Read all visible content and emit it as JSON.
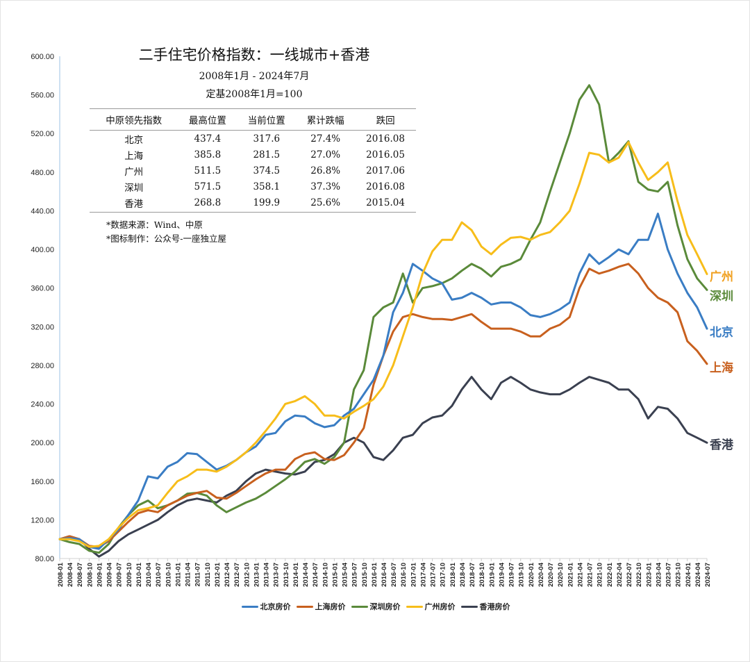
{
  "chart_data": {
    "type": "line",
    "title": "二手住宅价格指数：一线城市+香港",
    "subtitle_lines": [
      "2008年1月 - 2024年7月",
      "定基2008年1月=100"
    ],
    "xlabel": "",
    "ylabel": "",
    "ylim": [
      80,
      600
    ],
    "yticks": [
      "80.00",
      "120.00",
      "160.00",
      "200.00",
      "240.00",
      "280.00",
      "320.00",
      "360.00",
      "400.00",
      "440.00",
      "480.00",
      "520.00",
      "560.00",
      "600.00"
    ],
    "x": [
      "2008-01",
      "2008-04",
      "2008-07",
      "2008-10",
      "2009-01",
      "2009-04",
      "2009-07",
      "2009-10",
      "2010-01",
      "2010-04",
      "2010-07",
      "2010-10",
      "2011-01",
      "2011-04",
      "2011-07",
      "2011-10",
      "2012-01",
      "2012-04",
      "2012-07",
      "2012-10",
      "2013-01",
      "2013-04",
      "2013-07",
      "2013-10",
      "2014-01",
      "2014-04",
      "2014-07",
      "2014-10",
      "2015-01",
      "2015-04",
      "2015-07",
      "2015-10",
      "2016-01",
      "2016-04",
      "2016-07",
      "2016-10",
      "2017-01",
      "2017-04",
      "2017-07",
      "2017-10",
      "2018-01",
      "2018-04",
      "2018-07",
      "2018-10",
      "2019-01",
      "2019-04",
      "2019-07",
      "2019-10",
      "2020-01",
      "2020-04",
      "2020-07",
      "2020-10",
      "2021-01",
      "2021-04",
      "2021-07",
      "2021-10",
      "2022-01",
      "2022-04",
      "2022-07",
      "2022-10",
      "2023-01",
      "2023-04",
      "2023-07",
      "2023-10",
      "2024-01",
      "2024-04",
      "2024-07"
    ],
    "grid": false,
    "legend": "bottom",
    "series": [
      {
        "name": "北京房价",
        "end_label": "北京",
        "color": "#3a7dc4",
        "values": [
          100,
          101,
          100,
          92,
          90,
          100,
          110,
          125,
          140,
          165,
          163,
          175,
          180,
          189,
          188,
          180,
          172,
          176,
          182,
          190,
          196,
          208,
          210,
          222,
          228,
          227,
          220,
          216,
          218,
          228,
          235,
          250,
          265,
          290,
          335,
          355,
          385,
          378,
          370,
          365,
          348,
          350,
          355,
          350,
          343,
          345,
          345,
          340,
          332,
          330,
          333,
          338,
          345,
          375,
          395,
          385,
          392,
          400,
          395,
          410,
          410,
          437,
          400,
          375,
          355,
          340,
          318
        ]
      },
      {
        "name": "上海房价",
        "end_label": "上海",
        "color": "#c8601e",
        "values": [
          100,
          103,
          100,
          93,
          92,
          98,
          108,
          118,
          127,
          130,
          128,
          135,
          140,
          145,
          148,
          150,
          143,
          142,
          148,
          155,
          162,
          168,
          172,
          172,
          183,
          188,
          190,
          183,
          182,
          187,
          200,
          215,
          260,
          290,
          315,
          330,
          333,
          330,
          328,
          328,
          327,
          330,
          333,
          325,
          318,
          318,
          318,
          315,
          310,
          310,
          318,
          322,
          330,
          360,
          380,
          375,
          378,
          382,
          385,
          375,
          360,
          350,
          345,
          335,
          305,
          295,
          281.5
        ]
      },
      {
        "name": "深圳房价",
        "end_label": "深圳",
        "color": "#5a8a3a",
        "values": [
          100,
          97,
          95,
          88,
          86,
          95,
          112,
          125,
          135,
          140,
          132,
          135,
          140,
          147,
          148,
          145,
          135,
          128,
          133,
          138,
          142,
          148,
          155,
          162,
          170,
          180,
          183,
          178,
          185,
          200,
          255,
          275,
          330,
          340,
          345,
          375,
          345,
          360,
          362,
          365,
          370,
          378,
          385,
          380,
          372,
          382,
          385,
          390,
          410,
          428,
          460,
          490,
          520,
          555,
          570,
          550,
          490,
          500,
          512,
          470,
          462,
          460,
          470,
          425,
          390,
          370,
          358.1
        ]
      },
      {
        "name": "广州房价",
        "end_label": "广州",
        "color": "#f7bd1a",
        "values": [
          100,
          100,
          98,
          92,
          93,
          100,
          112,
          122,
          130,
          132,
          135,
          148,
          160,
          165,
          172,
          172,
          170,
          175,
          182,
          190,
          200,
          212,
          225,
          240,
          243,
          248,
          240,
          228,
          228,
          225,
          232,
          238,
          245,
          258,
          280,
          310,
          340,
          375,
          398,
          410,
          410,
          428,
          420,
          403,
          395,
          405,
          412,
          413,
          410,
          415,
          418,
          428,
          440,
          468,
          500,
          498,
          490,
          495,
          511,
          490,
          472,
          480,
          490,
          450,
          415,
          395,
          374.5
        ]
      },
      {
        "name": "香港房价",
        "end_label": "香港",
        "color": "#3a4050",
        "values": [
          100,
          103,
          100,
          90,
          82,
          88,
          98,
          105,
          110,
          115,
          120,
          128,
          135,
          140,
          142,
          140,
          138,
          145,
          150,
          160,
          168,
          172,
          170,
          168,
          167,
          170,
          180,
          182,
          188,
          200,
          205,
          200,
          185,
          182,
          192,
          205,
          208,
          220,
          226,
          228,
          238,
          255,
          268,
          255,
          245,
          262,
          268,
          262,
          255,
          252,
          250,
          250,
          255,
          262,
          268,
          265,
          262,
          255,
          255,
          245,
          225,
          237,
          235,
          225,
          210,
          205,
          199.9
        ]
      }
    ]
  },
  "table": {
    "headers": [
      "中原领先指数",
      "最高位置",
      "当前位置",
      "累计跌幅",
      "跌回"
    ],
    "rows": [
      [
        "北京",
        "437.4",
        "317.6",
        "27.4%",
        "2016.08"
      ],
      [
        "上海",
        "385.8",
        "281.5",
        "27.0%",
        "2016.05"
      ],
      [
        "广州",
        "511.5",
        "374.5",
        "26.8%",
        "2017.06"
      ],
      [
        "深圳",
        "571.5",
        "358.1",
        "37.3%",
        "2016.08"
      ],
      [
        "香港",
        "268.8",
        "199.9",
        "25.6%",
        "2015.04"
      ]
    ]
  },
  "notes": [
    "*数据来源：Wind、中原",
    "*图标制作：公众号-一座独立屋"
  ]
}
